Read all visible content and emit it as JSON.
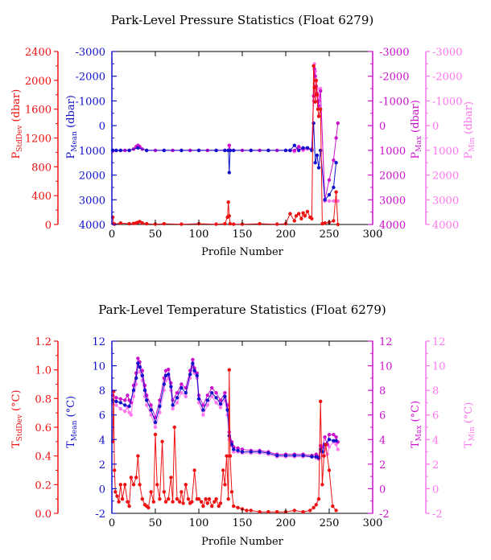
{
  "colors": {
    "stddev": "#ee1111",
    "mean": "#1111cc",
    "max": "#cc11cc",
    "min": "#ff77ee",
    "axis": "#000000"
  },
  "chart_data": [
    {
      "type": "line",
      "title": "Park-Level Pressure Statistics (Float 6279)",
      "xlabel": "Profile Number",
      "xlim": [
        0,
        300
      ],
      "x_ticks": [
        "0",
        "50",
        "100",
        "150",
        "200",
        "250",
        "300"
      ],
      "axes": [
        {
          "key": "stddev",
          "label_main": "P",
          "label_sub": "StdDev",
          "label_unit": " (dbar)",
          "lim": [
            0,
            2400
          ],
          "ticks": [
            "0",
            "400",
            "800",
            "1200",
            "1600",
            "2000",
            "2400"
          ],
          "color": "#ee1111"
        },
        {
          "key": "mean",
          "label_main": "P",
          "label_sub": "Mean",
          "label_unit": " (dbar)",
          "lim": [
            4000,
            -3000
          ],
          "ticks": [
            "4000",
            "3000",
            "2000",
            "1000",
            "0",
            "-1000",
            "-2000",
            "-3000"
          ],
          "color": "#1111cc"
        },
        {
          "key": "max",
          "label_main": "P",
          "label_sub": "Max",
          "label_unit": " (dbar)",
          "lim": [
            4000,
            -3000
          ],
          "ticks": [
            "4000",
            "3000",
            "2000",
            "1000",
            "0",
            "-1000",
            "-2000",
            "-3000"
          ],
          "color": "#cc11cc"
        },
        {
          "key": "min",
          "label_main": "P",
          "label_sub": "Min",
          "label_unit": " (dbar)",
          "lim": [
            4000,
            -3000
          ],
          "ticks": [
            "4000",
            "3000",
            "2000",
            "1000",
            "0",
            "-1000",
            "-2000",
            "-3000"
          ],
          "color": "#ff77ee"
        }
      ],
      "series": [
        {
          "key": "min",
          "x": [
            1,
            5,
            10,
            15,
            20,
            25,
            28,
            30,
            32,
            35,
            40,
            50,
            60,
            70,
            80,
            90,
            100,
            110,
            120,
            130,
            134,
            135,
            136,
            140,
            150,
            160,
            170,
            180,
            190,
            200,
            205,
            210,
            215,
            220,
            225,
            230,
            232,
            233,
            234,
            235,
            236,
            237,
            238,
            240,
            245,
            250,
            255,
            258,
            260
          ],
          "y": [
            1050,
            1000,
            1000,
            1000,
            1000,
            950,
            850,
            800,
            850,
            950,
            1000,
            1000,
            1000,
            1000,
            1000,
            1000,
            1000,
            1000,
            1000,
            1000,
            1000,
            800,
            1000,
            1000,
            1000,
            1000,
            1000,
            1000,
            1000,
            1000,
            1000,
            1050,
            900,
            1000,
            950,
            1000,
            -1000,
            -2500,
            -2200,
            -1800,
            -1500,
            -1200,
            -1000,
            -1500,
            3050,
            3050,
            3050,
            3050,
            3050
          ]
        },
        {
          "key": "max",
          "x": [
            1,
            5,
            10,
            15,
            20,
            25,
            28,
            30,
            32,
            35,
            40,
            50,
            60,
            70,
            80,
            90,
            100,
            110,
            120,
            130,
            134,
            135,
            136,
            140,
            150,
            160,
            170,
            180,
            190,
            200,
            205,
            210,
            215,
            220,
            225,
            230,
            232,
            233,
            234,
            235,
            236,
            237,
            238,
            240,
            245,
            250,
            255,
            258,
            260
          ],
          "y": [
            1000,
            1000,
            1000,
            1000,
            1000,
            950,
            850,
            800,
            850,
            950,
            1000,
            1000,
            1000,
            1000,
            1000,
            1000,
            1000,
            1000,
            1000,
            1000,
            1000,
            800,
            1000,
            1000,
            1000,
            1000,
            1000,
            1000,
            1000,
            1000,
            1000,
            1000,
            850,
            950,
            900,
            950,
            -1200,
            -2300,
            -2000,
            -1600,
            -1300,
            -1000,
            -800,
            -1400,
            3000,
            2200,
            1400,
            500,
            -100
          ]
        },
        {
          "key": "mean",
          "x": [
            1,
            5,
            10,
            20,
            30,
            40,
            60,
            80,
            100,
            120,
            130,
            134,
            135,
            136,
            140,
            160,
            180,
            200,
            205,
            210,
            215,
            220,
            225,
            230,
            232,
            234,
            236,
            238,
            240,
            245,
            250,
            255,
            258
          ],
          "y": [
            1000,
            1000,
            1000,
            1000,
            900,
            1000,
            1000,
            1000,
            1000,
            1000,
            1000,
            1000,
            1900,
            1000,
            1000,
            1000,
            1000,
            1000,
            1000,
            800,
            1000,
            900,
            900,
            1000,
            -100,
            1500,
            1200,
            1700,
            1000,
            3000,
            2800,
            2500,
            1500
          ]
        },
        {
          "key": "stddev",
          "x": [
            1,
            2,
            3,
            10,
            20,
            25,
            28,
            30,
            32,
            35,
            40,
            50,
            60,
            80,
            100,
            120,
            130,
            133,
            134,
            135,
            136,
            140,
            150,
            170,
            190,
            200,
            205,
            210,
            212,
            215,
            218,
            220,
            222,
            225,
            228,
            230,
            232,
            233,
            234,
            235,
            236,
            237,
            238,
            240,
            242,
            245,
            250,
            255,
            258,
            260
          ],
          "y": [
            100,
            10,
            5,
            20,
            10,
            15,
            20,
            30,
            40,
            20,
            10,
            5,
            10,
            5,
            10,
            5,
            10,
            100,
            310,
            120,
            10,
            5,
            5,
            10,
            5,
            10,
            150,
            50,
            120,
            150,
            80,
            160,
            120,
            180,
            100,
            80,
            2200,
            1900,
            1700,
            2000,
            1800,
            1600,
            1500,
            1600,
            10,
            20,
            30,
            50,
            450,
            0
          ]
        }
      ],
      "legend": "none"
    },
    {
      "type": "line",
      "title": "Park-Level Temperature Statistics (Float 6279)",
      "xlabel": "Profile Number",
      "xlim": [
        0,
        300
      ],
      "x_ticks": [
        "0",
        "50",
        "100",
        "150",
        "200",
        "250",
        "300"
      ],
      "axes": [
        {
          "key": "stddev",
          "label_main": "T",
          "label_sub": "StdDev",
          "label_unit": " (°C)",
          "lim": [
            0,
            1.2
          ],
          "ticks": [
            "0.0",
            "0.2",
            "0.4",
            "0.6",
            "0.8",
            "1.0",
            "1.2"
          ],
          "color": "#ee1111"
        },
        {
          "key": "mean",
          "label_main": "T",
          "label_sub": "Mean",
          "label_unit": " (°C)",
          "lim": [
            -2,
            12
          ],
          "ticks": [
            "-2",
            "0",
            "2",
            "4",
            "6",
            "8",
            "10",
            "12"
          ],
          "color": "#1111cc"
        },
        {
          "key": "max",
          "label_main": "T",
          "label_sub": "Max",
          "label_unit": " (°C)",
          "lim": [
            -2,
            12
          ],
          "ticks": [
            "-2",
            "0",
            "2",
            "4",
            "6",
            "8",
            "10",
            "12"
          ],
          "color": "#cc11cc"
        },
        {
          "key": "min",
          "label_main": "T",
          "label_sub": "Min",
          "label_unit": " (°C)",
          "lim": [
            -2,
            12
          ],
          "ticks": [
            "-2",
            "0",
            "2",
            "4",
            "6",
            "8",
            "10",
            "12"
          ],
          "color": "#ff77ee"
        }
      ],
      "series": [
        {
          "key": "min",
          "x": [
            1,
            5,
            10,
            15,
            18,
            20,
            22,
            25,
            28,
            30,
            32,
            35,
            38,
            40,
            45,
            50,
            55,
            60,
            62,
            65,
            68,
            70,
            75,
            80,
            85,
            90,
            93,
            95,
            98,
            100,
            105,
            110,
            115,
            120,
            125,
            130,
            133,
            135,
            138,
            140,
            145,
            150,
            160,
            170,
            180,
            190,
            200,
            210,
            220,
            230,
            235,
            238,
            240,
            242,
            245,
            248,
            250,
            255,
            258,
            260
          ],
          "y": [
            6.9,
            6.8,
            6.5,
            6.3,
            6.6,
            6.2,
            6.0,
            7.5,
            8.5,
            10.2,
            9.5,
            8.8,
            7.5,
            6.8,
            6.0,
            5.0,
            6.2,
            8.0,
            8.8,
            9.0,
            8.0,
            6.5,
            7.0,
            7.8,
            7.5,
            9.0,
            10.0,
            9.4,
            9.0,
            7.0,
            6.0,
            6.8,
            7.5,
            7.0,
            6.6,
            7.2,
            6.0,
            4.0,
            3.5,
            3.0,
            3.0,
            2.9,
            2.9,
            2.9,
            2.8,
            2.6,
            2.6,
            2.6,
            2.6,
            2.6,
            2.5,
            2.4,
            3.0,
            2.7,
            3.2,
            2.8,
            3.4,
            3.8,
            3.6,
            3.2
          ]
        },
        {
          "key": "max",
          "x": [
            1,
            5,
            10,
            15,
            18,
            20,
            22,
            25,
            28,
            30,
            32,
            35,
            38,
            40,
            45,
            50,
            55,
            60,
            62,
            65,
            68,
            70,
            75,
            80,
            85,
            90,
            93,
            95,
            98,
            100,
            105,
            110,
            115,
            120,
            125,
            130,
            133,
            135,
            138,
            140,
            145,
            150,
            160,
            170,
            180,
            190,
            200,
            210,
            220,
            230,
            235,
            238,
            240,
            242,
            245,
            248,
            250,
            255,
            258,
            260
          ],
          "y": [
            7.6,
            7.4,
            7.3,
            7.2,
            7.6,
            7.2,
            7.0,
            8.4,
            9.4,
            10.6,
            10.3,
            9.6,
            8.4,
            7.6,
            6.8,
            5.8,
            7.2,
            9.0,
            9.6,
            9.7,
            8.6,
            7.2,
            7.8,
            8.5,
            8.2,
            9.6,
            10.5,
            9.8,
            9.4,
            7.6,
            6.8,
            7.6,
            8.2,
            7.8,
            7.2,
            7.8,
            6.8,
            4.6,
            3.8,
            3.4,
            3.3,
            3.2,
            3.1,
            3.1,
            3.0,
            2.8,
            2.8,
            2.8,
            2.8,
            2.7,
            2.8,
            2.6,
            3.5,
            3.4,
            4.2,
            3.6,
            4.4,
            4.4,
            4.2,
            3.8
          ]
        },
        {
          "key": "mean",
          "x": [
            1,
            5,
            10,
            15,
            20,
            25,
            28,
            30,
            32,
            35,
            38,
            40,
            45,
            50,
            55,
            60,
            62,
            65,
            68,
            70,
            75,
            80,
            85,
            90,
            93,
            95,
            98,
            100,
            105,
            110,
            115,
            120,
            125,
            130,
            133,
            135,
            138,
            140,
            145,
            150,
            160,
            170,
            180,
            190,
            200,
            210,
            220,
            230,
            235,
            238,
            240,
            242,
            245,
            250,
            255,
            258
          ],
          "y": [
            7.2,
            7.1,
            7.0,
            6.8,
            6.7,
            8.0,
            9.0,
            10.2,
            9.9,
            9.2,
            8.0,
            7.2,
            6.4,
            5.4,
            6.7,
            8.5,
            9.2,
            9.3,
            8.3,
            6.8,
            7.4,
            8.2,
            7.8,
            9.3,
            10.2,
            9.6,
            9.2,
            7.3,
            6.4,
            7.2,
            7.8,
            7.4,
            6.9,
            7.5,
            6.4,
            4.3,
            3.6,
            3.2,
            3.1,
            3.0,
            3.0,
            3.0,
            2.9,
            2.7,
            2.7,
            2.7,
            2.7,
            2.6,
            2.6,
            2.5,
            3.2,
            3.0,
            3.6,
            4.0,
            3.9,
            3.9
          ]
        },
        {
          "key": "stddev",
          "x": [
            1,
            2,
            3,
            4,
            6,
            8,
            10,
            12,
            15,
            18,
            20,
            22,
            25,
            28,
            30,
            32,
            35,
            38,
            40,
            42,
            45,
            48,
            50,
            52,
            55,
            58,
            60,
            62,
            65,
            68,
            70,
            72,
            75,
            78,
            80,
            82,
            85,
            88,
            90,
            92,
            95,
            98,
            100,
            103,
            105,
            108,
            110,
            112,
            115,
            118,
            120,
            123,
            125,
            128,
            130,
            132,
            134,
            135,
            136,
            138,
            140,
            145,
            150,
            155,
            160,
            170,
            180,
            190,
            200,
            210,
            220,
            228,
            232,
            235,
            238,
            240,
            242,
            244,
            246,
            250,
            254,
            258
          ],
          "y": [
            0.5,
            0.85,
            0.3,
            0.15,
            0.12,
            0.08,
            0.2,
            0.1,
            0.2,
            0.08,
            0.05,
            0.25,
            0.2,
            0.25,
            0.4,
            0.2,
            0.1,
            0.06,
            0.05,
            0.04,
            0.15,
            0.08,
            0.55,
            0.2,
            0.1,
            0.5,
            0.15,
            0.08,
            0.1,
            0.25,
            0.08,
            0.6,
            0.1,
            0.08,
            0.15,
            0.07,
            0.2,
            0.1,
            0.07,
            0.08,
            0.3,
            0.1,
            0.1,
            0.08,
            0.05,
            0.1,
            0.07,
            0.1,
            0.05,
            0.08,
            0.1,
            0.05,
            0.07,
            0.3,
            0.2,
            0.4,
            0.1,
            1.0,
            0.4,
            0.15,
            0.05,
            0.04,
            0.03,
            0.02,
            0.02,
            0.01,
            0.01,
            0.01,
            0.01,
            0.02,
            0.01,
            0.02,
            0.04,
            0.06,
            0.1,
            0.78,
            0.2,
            0.4,
            0.48,
            0.3,
            0.05,
            0.02
          ]
        }
      ],
      "legend": "none"
    }
  ]
}
